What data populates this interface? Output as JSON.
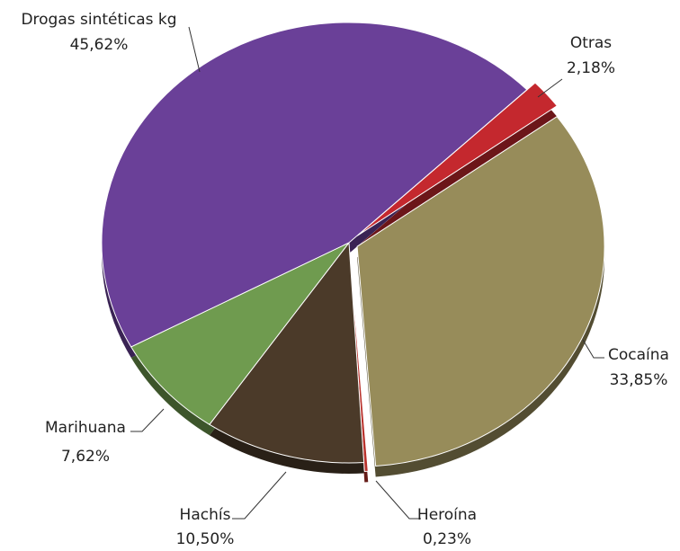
{
  "chart_data": {
    "type": "pie",
    "categories": [
      "Otras",
      "Cocaína",
      "Heroína",
      "Hachís",
      "Marihuana",
      "Drogas sintéticas kg"
    ],
    "values": [
      2.18,
      33.85,
      0.23,
      10.5,
      7.62,
      45.62
    ],
    "value_labels": [
      "2,18%",
      "33,85%",
      "0,23%",
      "10,50%",
      "7,62%",
      "45,62%"
    ],
    "colors": [
      "#c4282e",
      "#978c5a",
      "#b8322c",
      "#4b3a29",
      "#6f9b4f",
      "#6a4098"
    ]
  }
}
